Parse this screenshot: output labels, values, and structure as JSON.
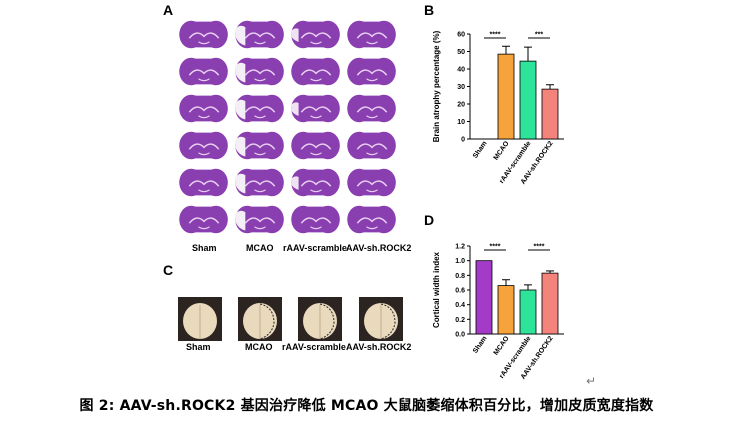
{
  "panels": {
    "A": "A",
    "B": "B",
    "C": "C",
    "D": "D"
  },
  "groups_a": [
    "Sham",
    "MCAO",
    "rAAV-scramble",
    "AAV-sh.ROCK2"
  ],
  "groups_c": [
    "Sham",
    "MCAO",
    "rAAV-scramble",
    "AAV-sh.ROCK2"
  ],
  "colors": {
    "sham": "#a43bc8",
    "mcao": "#f5a33a",
    "scramble": "#2ee39a",
    "rock2": "#f3837b",
    "stain": "#8a3fb0"
  },
  "caption": "图 2: AAV-sh.ROCK2 基因治疗降低 MCAO 大鼠脑萎缩体积百分比，增加皮质宽度指数",
  "return_mark": "↵",
  "chart_data": [
    {
      "type": "bar",
      "panel": "B",
      "categories": [
        "Sham",
        "MCAO",
        "rAAV-scramble",
        "AAV-sh.ROCK2"
      ],
      "values": [
        0,
        48.5,
        44.5,
        28.5
      ],
      "errors": [
        0,
        4.5,
        8,
        2.5
      ],
      "colors": [
        "#a43bc8",
        "#f5a33a",
        "#2ee39a",
        "#f3837b"
      ],
      "ylabel": "Brain atrophy percentage (%)",
      "ylim": [
        0,
        60
      ],
      "yticks": [
        "0",
        "10",
        "20",
        "30",
        "40",
        "50",
        "60"
      ],
      "annotations": [
        {
          "from": 0,
          "to": 1,
          "text": "****"
        },
        {
          "from": 2,
          "to": 3,
          "text": "***"
        }
      ]
    },
    {
      "type": "bar",
      "panel": "D",
      "categories": [
        "Sham",
        "MCAO",
        "rAAV-scramble",
        "AAV-sh.ROCK2"
      ],
      "values": [
        1.0,
        0.66,
        0.6,
        0.83
      ],
      "errors": [
        0,
        0.08,
        0.07,
        0.03
      ],
      "colors": [
        "#a43bc8",
        "#f5a33a",
        "#2ee39a",
        "#f3837b"
      ],
      "ylabel": "Cortical width index",
      "ylim": [
        0,
        1.2
      ],
      "yticks": [
        "0.0",
        "0.2",
        "0.4",
        "0.6",
        "0.8",
        "1.0",
        "1.2"
      ],
      "annotations": [
        {
          "from": 0,
          "to": 1,
          "text": "****"
        },
        {
          "from": 2,
          "to": 3,
          "text": "****"
        }
      ]
    }
  ]
}
